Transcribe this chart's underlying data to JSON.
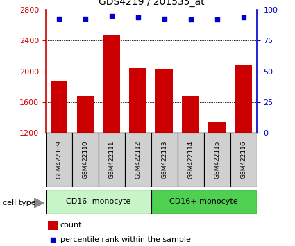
{
  "title": "GDS4219 / 201535_at",
  "samples": [
    "GSM422109",
    "GSM422110",
    "GSM422111",
    "GSM422112",
    "GSM422113",
    "GSM422114",
    "GSM422115",
    "GSM422116"
  ],
  "counts": [
    1870,
    1680,
    2480,
    2040,
    2020,
    1680,
    1340,
    2080
  ],
  "percentile_ranks": [
    93,
    93,
    95,
    94,
    93,
    92,
    92,
    94
  ],
  "groups": [
    {
      "label": "CD16- monocyte",
      "indices": [
        0,
        1,
        2,
        3
      ],
      "color": "#c8f5c8"
    },
    {
      "label": "CD16+ monocyte",
      "indices": [
        4,
        5,
        6,
        7
      ],
      "color": "#50d050"
    }
  ],
  "bar_color": "#cc0000",
  "dot_color": "#0000cc",
  "ylim_left": [
    1200,
    2800
  ],
  "ylim_right": [
    0,
    100
  ],
  "yticks_left": [
    1200,
    1600,
    2000,
    2400,
    2800
  ],
  "yticks_right": [
    0,
    25,
    50,
    75,
    100
  ],
  "background_color": "#ffffff",
  "tick_color_left": "#cc0000",
  "tick_color_right": "#0000cc",
  "cell_type_label": "cell type",
  "legend_count_label": "count",
  "legend_pct_label": "percentile rank within the sample",
  "sample_box_color": "#d0d0d0",
  "grid_yticks": [
    1600,
    2000,
    2400
  ]
}
